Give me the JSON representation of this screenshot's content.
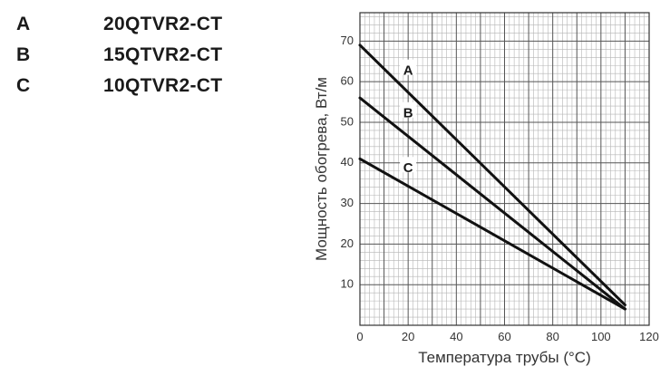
{
  "legend": [
    {
      "key": "A",
      "model": "20QTVR2-CT"
    },
    {
      "key": "B",
      "model": "15QTVR2-CT"
    },
    {
      "key": "C",
      "model": "10QTVR2-CT"
    }
  ],
  "chart_data": {
    "type": "line",
    "title": "",
    "xlabel": "Температура трубы (°C)",
    "ylabel": "Мощность обогрева, Вт/м",
    "xlim": [
      0,
      120
    ],
    "ylim": [
      0,
      77
    ],
    "x_ticks": [
      0,
      20,
      40,
      60,
      80,
      100,
      120
    ],
    "y_ticks": [
      10,
      20,
      30,
      40,
      50,
      60,
      70
    ],
    "grid": true,
    "series": [
      {
        "name": "A",
        "x": [
          0,
          110
        ],
        "y": [
          69,
          5
        ]
      },
      {
        "name": "B",
        "x": [
          0,
          110
        ],
        "y": [
          56,
          4
        ]
      },
      {
        "name": "C",
        "x": [
          0,
          110
        ],
        "y": [
          41,
          4
        ]
      }
    ],
    "series_labels": [
      {
        "text": "A",
        "x": 20,
        "y": 63
      },
      {
        "text": "B",
        "x": 20,
        "y": 52.5
      },
      {
        "text": "C",
        "x": 20,
        "y": 39
      }
    ]
  }
}
